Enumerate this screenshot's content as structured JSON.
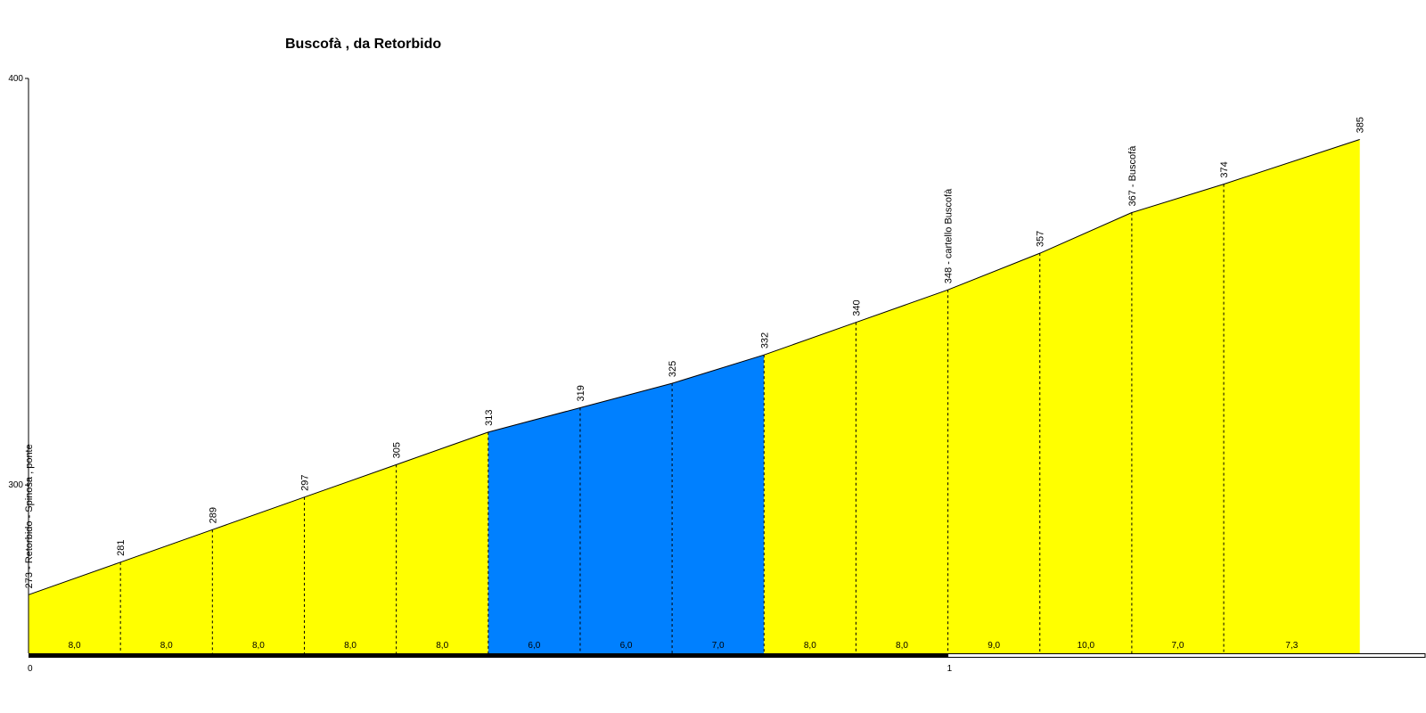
{
  "chart_data": {
    "type": "area",
    "title": "Buscofà , da Retorbido",
    "y_ticks": [
      "300",
      "400"
    ],
    "x_ticks": [
      "0",
      "1"
    ],
    "points": [
      {
        "dist": 0.0,
        "alt": 273,
        "label": "273 - Retorbido - Spinosa , ponte"
      },
      {
        "dist": 0.1,
        "alt": 281,
        "label": "281"
      },
      {
        "dist": 0.2,
        "alt": 289,
        "label": "289"
      },
      {
        "dist": 0.3,
        "alt": 297,
        "label": "297"
      },
      {
        "dist": 0.4,
        "alt": 305,
        "label": "305"
      },
      {
        "dist": 0.5,
        "alt": 313,
        "label": "313"
      },
      {
        "dist": 0.6,
        "alt": 319,
        "label": "319"
      },
      {
        "dist": 0.7,
        "alt": 325,
        "label": "325"
      },
      {
        "dist": 0.8,
        "alt": 332,
        "label": "332"
      },
      {
        "dist": 0.9,
        "alt": 340,
        "label": "340"
      },
      {
        "dist": 1.0,
        "alt": 348,
        "label": "348 - cartello Buscofà"
      },
      {
        "dist": 1.1,
        "alt": 357,
        "label": "357"
      },
      {
        "dist": 1.2,
        "alt": 367,
        "label": "367 - Buscofà"
      },
      {
        "dist": 1.3,
        "alt": 374,
        "label": "374"
      },
      {
        "dist": 1.448,
        "alt": 385,
        "label": "385"
      }
    ],
    "segments": [
      {
        "gradient": "8,0",
        "color": "#ffff00"
      },
      {
        "gradient": "8,0",
        "color": "#ffff00"
      },
      {
        "gradient": "8,0",
        "color": "#ffff00"
      },
      {
        "gradient": "8,0",
        "color": "#ffff00"
      },
      {
        "gradient": "8,0",
        "color": "#ffff00"
      },
      {
        "gradient": "6,0",
        "color": "#0080ff"
      },
      {
        "gradient": "6,0",
        "color": "#0080ff"
      },
      {
        "gradient": "7,0",
        "color": "#0080ff"
      },
      {
        "gradient": "8,0",
        "color": "#ffff00"
      },
      {
        "gradient": "8,0",
        "color": "#ffff00"
      },
      {
        "gradient": "9,0",
        "color": "#ffff00"
      },
      {
        "gradient": "10,0",
        "color": "#ffff00"
      },
      {
        "gradient": "7,0",
        "color": "#ffff00"
      },
      {
        "gradient": "7,3",
        "color": "#ffff00"
      }
    ],
    "x_range": [
      0,
      1.52
    ],
    "y_range": [
      258.6,
      400
    ],
    "x_unit": "km",
    "y_unit": "m"
  }
}
